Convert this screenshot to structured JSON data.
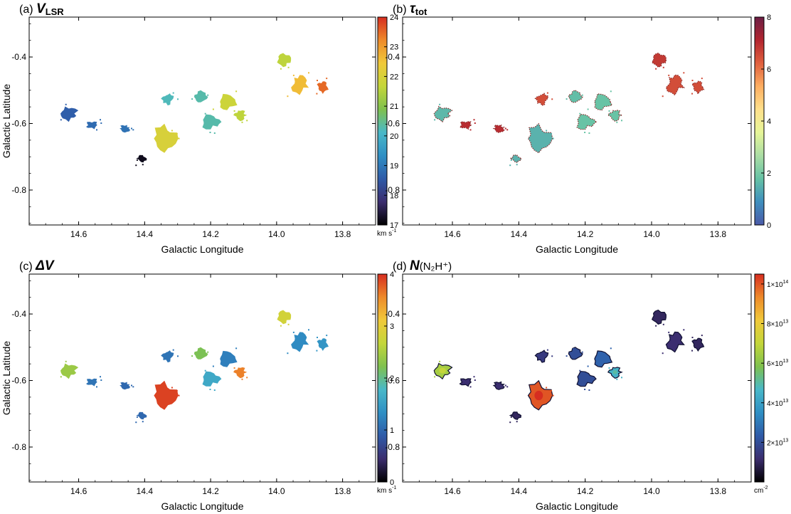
{
  "figure": {
    "x_ticks": [
      14.6,
      14.4,
      14.2,
      14.0,
      13.8
    ],
    "x_tick_labels": [
      "14.6",
      "14.4",
      "14.2",
      "14.0",
      "13.8"
    ],
    "y_ticks": [
      -0.4,
      -0.6,
      -0.8
    ],
    "y_tick_labels": [
      "-0.4",
      "-0.6",
      "-0.8"
    ],
    "xlim": [
      14.75,
      13.7
    ],
    "ylim": [
      -0.905,
      -0.28
    ]
  },
  "chart_data": [
    {
      "type": "heatmap",
      "panel": "a",
      "label_prefix": "(a)",
      "title_main": "V",
      "title_sub": "LSR",
      "title": "(a) VLSR",
      "xlabel": "Galactic Longitude",
      "ylabel": "Galactic Latitude",
      "colorbar": {
        "ticks": [
          17,
          18,
          19,
          20,
          21,
          22,
          23,
          24
        ],
        "tick_labels": [
          "17",
          "18",
          "19",
          "20",
          "21",
          "22",
          "23",
          "24"
        ],
        "range": [
          17,
          24
        ],
        "unit": "km s",
        "unit_exp": "-1",
        "colormap": "rainbow",
        "colors": [
          "#000000",
          "#3b2d6e",
          "#2f5ba8",
          "#2f8fc4",
          "#49b8c8",
          "#7fc14e",
          "#c4d63a",
          "#f0c93a",
          "#ee8a2a",
          "#d62d20"
        ]
      },
      "clumps": [
        {
          "l": 14.63,
          "b": -0.57,
          "value": 18.6
        },
        {
          "l": 14.56,
          "b": -0.605,
          "value": 18.8
        },
        {
          "l": 14.46,
          "b": -0.615,
          "value": 18.9
        },
        {
          "l": 14.41,
          "b": -0.705,
          "value": 17.2
        },
        {
          "l": 14.34,
          "b": -0.645,
          "value": 22.0
        },
        {
          "l": 14.33,
          "b": -0.525,
          "value": 20.2
        },
        {
          "l": 14.23,
          "b": -0.52,
          "value": 20.3
        },
        {
          "l": 14.15,
          "b": -0.535,
          "value": 21.8
        },
        {
          "l": 14.2,
          "b": -0.595,
          "value": 20.3
        },
        {
          "l": 14.11,
          "b": -0.575,
          "value": 21.6
        },
        {
          "l": 13.98,
          "b": -0.41,
          "value": 21.6
        },
        {
          "l": 13.93,
          "b": -0.48,
          "value": 22.6
        },
        {
          "l": 13.86,
          "b": -0.49,
          "value": 23.5
        }
      ]
    },
    {
      "type": "heatmap",
      "panel": "b",
      "label_prefix": "(b)",
      "title_main": "τ",
      "title_sub": "tot",
      "title": "(b) τtot",
      "xlabel": "Galactic Longitude",
      "ylabel": "",
      "colorbar": {
        "ticks": [
          0,
          2,
          4,
          6,
          8
        ],
        "tick_labels": [
          "0",
          "2",
          "4",
          "6",
          "8"
        ],
        "range": [
          0,
          8
        ],
        "unit": "",
        "unit_exp": "",
        "colormap": "spectral",
        "colors": [
          "#4a5aa8",
          "#3f8fbe",
          "#66c2a5",
          "#abdda4",
          "#e6f598",
          "#fee08b",
          "#fdae61",
          "#e0603e",
          "#b2252f",
          "#6b1e45"
        ]
      },
      "clumps": [
        {
          "l": 14.63,
          "b": -0.57,
          "value": 1.6
        },
        {
          "l": 14.56,
          "b": -0.605,
          "value": 7.0
        },
        {
          "l": 14.46,
          "b": -0.615,
          "value": 7.0
        },
        {
          "l": 14.41,
          "b": -0.705,
          "value": 1.5
        },
        {
          "l": 14.34,
          "b": -0.645,
          "value": 1.5
        },
        {
          "l": 14.33,
          "b": -0.525,
          "value": 6.5
        },
        {
          "l": 14.23,
          "b": -0.52,
          "value": 1.7
        },
        {
          "l": 14.15,
          "b": -0.535,
          "value": 1.8
        },
        {
          "l": 14.2,
          "b": -0.595,
          "value": 1.8
        },
        {
          "l": 14.11,
          "b": -0.575,
          "value": 1.8
        },
        {
          "l": 13.98,
          "b": -0.41,
          "value": 6.8
        },
        {
          "l": 13.93,
          "b": -0.48,
          "value": 6.5
        },
        {
          "l": 13.86,
          "b": -0.49,
          "value": 6.5
        }
      ]
    },
    {
      "type": "heatmap",
      "panel": "c",
      "label_prefix": "(c)",
      "title_main": "ΔV",
      "title_sub": "",
      "title": "(c) ΔV",
      "xlabel": "Galactic Longitude",
      "ylabel": "Galactic Latitude",
      "colorbar": {
        "ticks": [
          0,
          1,
          2,
          3,
          4
        ],
        "tick_labels": [
          "0",
          "1",
          "2",
          "3",
          "4"
        ],
        "range": [
          0,
          4
        ],
        "unit": "km s",
        "unit_exp": "-1",
        "colormap": "rainbow",
        "colors": [
          "#000000",
          "#3b2d6e",
          "#2f5ba8",
          "#2f8fc4",
          "#49b8c8",
          "#7fc14e",
          "#c4d63a",
          "#f0c93a",
          "#ee8a2a",
          "#d62d20"
        ]
      },
      "clumps": [
        {
          "l": 14.63,
          "b": -0.57,
          "value": 2.4
        },
        {
          "l": 14.56,
          "b": -0.605,
          "value": 1.1
        },
        {
          "l": 14.46,
          "b": -0.615,
          "value": 1.0
        },
        {
          "l": 14.41,
          "b": -0.705,
          "value": 1.0
        },
        {
          "l": 14.34,
          "b": -0.645,
          "value": 3.9
        },
        {
          "l": 14.33,
          "b": -0.525,
          "value": 1.1
        },
        {
          "l": 14.23,
          "b": -0.52,
          "value": 2.2
        },
        {
          "l": 14.15,
          "b": -0.535,
          "value": 1.2
        },
        {
          "l": 14.2,
          "b": -0.595,
          "value": 1.6
        },
        {
          "l": 14.11,
          "b": -0.575,
          "value": 3.6
        },
        {
          "l": 13.98,
          "b": -0.41,
          "value": 2.8
        },
        {
          "l": 13.93,
          "b": -0.48,
          "value": 1.3
        },
        {
          "l": 13.86,
          "b": -0.49,
          "value": 1.4
        }
      ]
    },
    {
      "type": "heatmap",
      "panel": "d",
      "label_prefix": "(d)",
      "title_main": "N",
      "title_sub": "",
      "title_molecule": "(N₂H⁺)",
      "title": "(d) N(N2H+)",
      "xlabel": "Galactic Longitude",
      "ylabel": "",
      "colorbar": {
        "ticks": [
          0,
          20000000000000.0,
          40000000000000.0,
          60000000000000.0,
          80000000000000.0,
          100000000000000.0
        ],
        "tick_mantissas": [
          "",
          "2×10",
          "4×10",
          "6×10",
          "8×10",
          "1×10"
        ],
        "tick_exponents": [
          "",
          "13",
          "13",
          "13",
          "13",
          "14"
        ],
        "range": [
          0,
          105000000000000.0
        ],
        "unit": "cm",
        "unit_exp": "-2",
        "colormap": "rainbow",
        "colors": [
          "#000000",
          "#3b2d6e",
          "#2f5ba8",
          "#2f8fc4",
          "#49b8c8",
          "#7fc14e",
          "#c4d63a",
          "#f0c93a",
          "#ee8a2a",
          "#d62d20"
        ]
      },
      "clumps": [
        {
          "l": 14.63,
          "b": -0.57,
          "value": 65000000000000.0
        },
        {
          "l": 14.56,
          "b": -0.605,
          "value": 12000000000000.0
        },
        {
          "l": 14.46,
          "b": -0.615,
          "value": 12000000000000.0
        },
        {
          "l": 14.41,
          "b": -0.705,
          "value": 10000000000000.0
        },
        {
          "l": 14.34,
          "b": -0.645,
          "value": 100000000000000.0
        },
        {
          "l": 14.33,
          "b": -0.525,
          "value": 15000000000000.0
        },
        {
          "l": 14.23,
          "b": -0.52,
          "value": 20000000000000.0
        },
        {
          "l": 14.15,
          "b": -0.535,
          "value": 25000000000000.0
        },
        {
          "l": 14.2,
          "b": -0.595,
          "value": 20000000000000.0
        },
        {
          "l": 14.11,
          "b": -0.575,
          "value": 45000000000000.0
        },
        {
          "l": 13.98,
          "b": -0.41,
          "value": 10000000000000.0
        },
        {
          "l": 13.93,
          "b": -0.48,
          "value": 12000000000000.0
        },
        {
          "l": 13.86,
          "b": -0.49,
          "value": 10000000000000.0
        }
      ]
    }
  ]
}
